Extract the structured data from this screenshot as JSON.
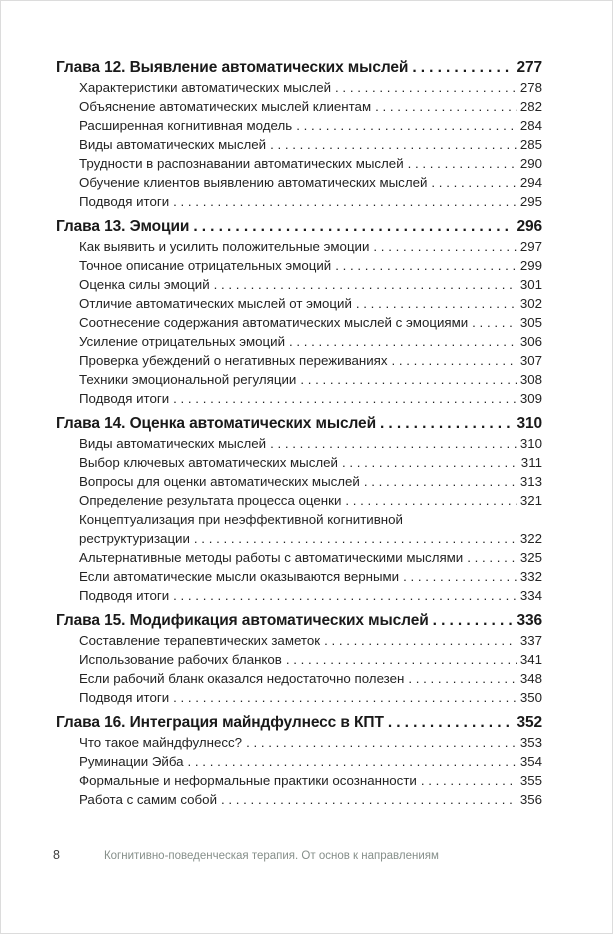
{
  "document": {
    "colors": {
      "heading_text": "#1a1a1a",
      "entry_text": "#232323",
      "footer_title": "#868f8a",
      "footer_page": "#3c3c3c",
      "page_border": "#dcdcdc"
    },
    "footer": {
      "page_number": "8",
      "running_title": "Когнитивно-поведенческая терапия. От основ к направлениям"
    },
    "toc": {
      "chapters": [
        {
          "title": "Глава 12. Выявление автоматических мыслей",
          "page": "277",
          "entries": [
            {
              "title": "Характеристики автоматических мыслей",
              "page": "278"
            },
            {
              "title": "Объяснение автоматических мыслей клиентам",
              "page": "282"
            },
            {
              "title": "Расширенная когнитивная модель",
              "page": "284"
            },
            {
              "title": "Виды автоматических мыслей",
              "page": "285"
            },
            {
              "title": "Трудности в распознавании автоматических мыслей",
              "page": "290"
            },
            {
              "title": "Обучение клиентов выявлению автоматических мыслей",
              "page": "294"
            },
            {
              "title": "Подводя итоги",
              "page": "295"
            }
          ]
        },
        {
          "title": "Глава 13. Эмоции",
          "page": "296",
          "entries": [
            {
              "title": "Как выявить и усилить положительные эмоции",
              "page": "297"
            },
            {
              "title": "Точное описание отрицательных эмоций",
              "page": "299"
            },
            {
              "title": "Оценка силы эмоций",
              "page": "301"
            },
            {
              "title": "Отличие автоматических мыслей от эмоций",
              "page": "302"
            },
            {
              "title": "Соотнесение содержания автоматических мыслей с эмоциями",
              "page": "305"
            },
            {
              "title": "Усиление отрицательных эмоций",
              "page": "306"
            },
            {
              "title": "Проверка убеждений о негативных переживаниях",
              "page": "307"
            },
            {
              "title": "Техники эмоциональной регуляции",
              "page": "308"
            },
            {
              "title": "Подводя итоги",
              "page": "309"
            }
          ]
        },
        {
          "title": "Глава 14. Оценка автоматических мыслей",
          "page": "310",
          "entries": [
            {
              "title": "Виды автоматических мыслей",
              "page": "310"
            },
            {
              "title": "Выбор ключевых автоматических мыслей",
              "page": "311"
            },
            {
              "title": "Вопросы для оценки автоматических мыслей",
              "page": "313"
            },
            {
              "title": "Определение результата процесса оценки",
              "page": "321"
            },
            {
              "title_pre": "Концептуализация при неэффективной когнитивной",
              "title": "реструктуризации",
              "page": "322"
            },
            {
              "title": "Альтернативные методы работы с автоматическими мыслями",
              "page": "325"
            },
            {
              "title": "Если автоматические мысли оказываются верными",
              "page": "332"
            },
            {
              "title": "Подводя итоги",
              "page": "334"
            }
          ]
        },
        {
          "title": "Глава 15. Модификация автоматических мыслей",
          "page": "336",
          "entries": [
            {
              "title": "Составление терапевтических заметок",
              "page": "337"
            },
            {
              "title": "Использование рабочих бланков",
              "page": "341"
            },
            {
              "title": "Если рабочий бланк оказался недостаточно полезен",
              "page": "348"
            },
            {
              "title": "Подводя итоги",
              "page": "350"
            }
          ]
        },
        {
          "title": "Глава 16. Интеграция майндфулнесс в КПТ",
          "page": "352",
          "entries": [
            {
              "title": "Что такое майндфулнесс?",
              "page": "353"
            },
            {
              "title": "Руминации Эйба",
              "page": "354"
            },
            {
              "title": "Формальные и неформальные практики осознанности",
              "page": "355"
            },
            {
              "title": "Работа с самим собой",
              "page": "356"
            }
          ]
        }
      ]
    }
  }
}
